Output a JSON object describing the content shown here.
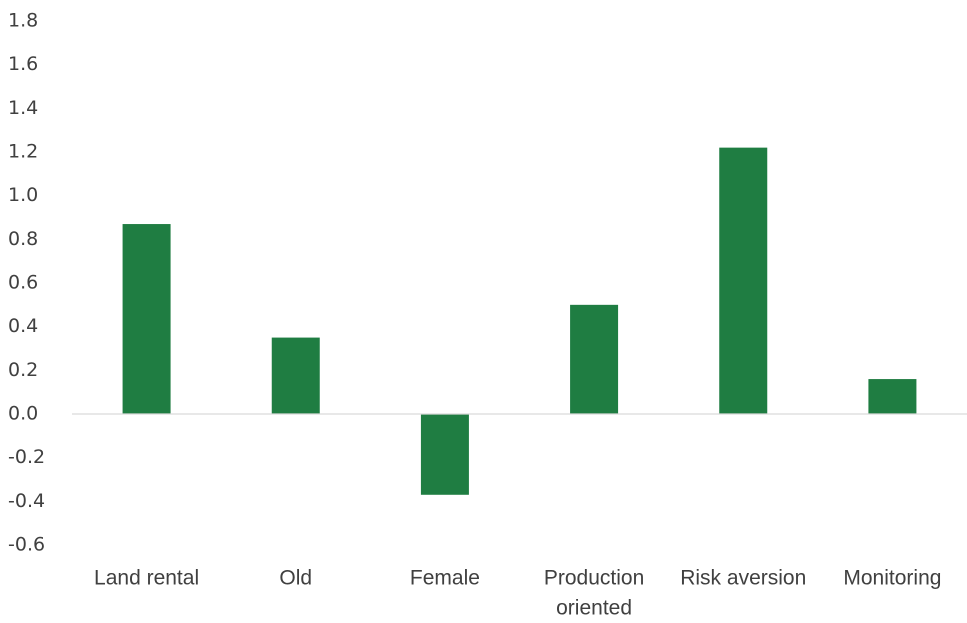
{
  "chart_data": {
    "type": "bar",
    "categories": [
      "Land rental",
      "Old",
      "Female",
      "Production oriented",
      "Risk aversion",
      "Monitoring"
    ],
    "category_lines": [
      [
        "Land rental"
      ],
      [
        "Old"
      ],
      [
        "Female"
      ],
      [
        "Production",
        "oriented"
      ],
      [
        "Risk aversion"
      ],
      [
        "Monitoring"
      ]
    ],
    "values": [
      0.87,
      0.35,
      -0.37,
      0.5,
      1.22,
      0.16
    ],
    "ylim": [
      -0.6,
      1.8
    ],
    "yticks": [
      "-0.6",
      "-0.4",
      "-0.2",
      "0.0",
      "0.2",
      "0.4",
      "0.6",
      "0.8",
      "1.0",
      "1.2",
      "1.4",
      "1.6",
      "1.8"
    ],
    "title": "",
    "xlabel": "",
    "ylabel": "",
    "grid": false,
    "legend": "none",
    "bar_color": "#1f7d42",
    "axis_color": "#d9d9d9",
    "text_color": "#404040"
  }
}
